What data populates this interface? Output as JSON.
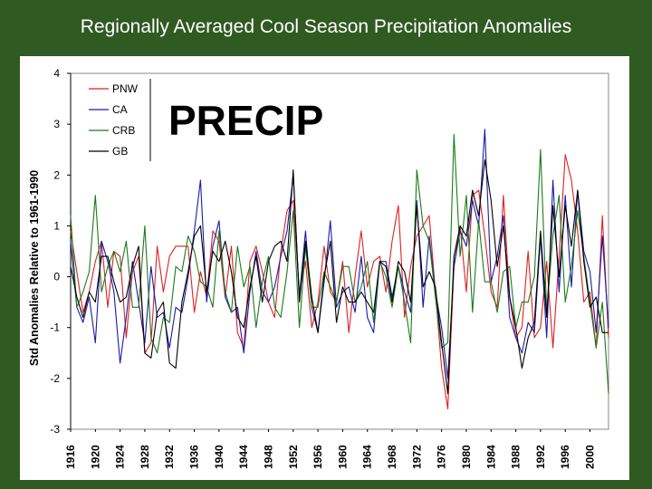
{
  "slide": {
    "title": "Regionally Averaged Cool Season Precipitation Anomalies",
    "overlay_label": "PRECIP"
  },
  "chart_data": {
    "type": "line",
    "title": "",
    "xlabel": "",
    "ylabel": "Std Anomalies Relative to 1961-1990",
    "x": [
      1916,
      1917,
      1918,
      1919,
      1920,
      1921,
      1922,
      1923,
      1924,
      1925,
      1926,
      1927,
      1928,
      1929,
      1930,
      1931,
      1932,
      1933,
      1934,
      1935,
      1936,
      1937,
      1938,
      1939,
      1940,
      1941,
      1942,
      1943,
      1944,
      1945,
      1946,
      1947,
      1948,
      1949,
      1950,
      1951,
      1952,
      1953,
      1954,
      1955,
      1956,
      1957,
      1958,
      1959,
      1960,
      1961,
      1962,
      1963,
      1964,
      1965,
      1966,
      1967,
      1968,
      1969,
      1970,
      1971,
      1972,
      1973,
      1974,
      1975,
      1976,
      1977,
      1978,
      1979,
      1980,
      1981,
      1982,
      1983,
      1984,
      1985,
      1986,
      1987,
      1988,
      1989,
      1990,
      1991,
      1992,
      1993,
      1994,
      1995,
      1996,
      1997,
      1998,
      1999,
      2000,
      2001,
      2002,
      2003
    ],
    "xticks": [
      1916,
      1920,
      1924,
      1928,
      1932,
      1936,
      1940,
      1944,
      1948,
      1952,
      1956,
      1960,
      1964,
      1968,
      1972,
      1976,
      1980,
      1984,
      1988,
      1992,
      1996,
      2000
    ],
    "yticks": [
      4,
      3,
      2,
      1,
      0,
      -1,
      -2,
      -3
    ],
    "ylim": [
      -3,
      4
    ],
    "xlim": [
      1916,
      2003
    ],
    "grid": false,
    "legend_position": "top-left",
    "series": [
      {
        "name": "PNW",
        "color": "#e02020",
        "values": [
          0.9,
          0.1,
          -0.7,
          -0.3,
          0.3,
          0.7,
          -0.6,
          0.5,
          0.4,
          -1.2,
          0.1,
          0.4,
          -1.5,
          -1.3,
          0.6,
          -0.3,
          0.4,
          0.6,
          0.6,
          0.6,
          -0.7,
          0.1,
          -0.4,
          0.9,
          0.7,
          -0.4,
          0.6,
          -1.1,
          -1.4,
          0.3,
          0.6,
          0.1,
          -0.5,
          -0.8,
          0.5,
          1.3,
          1.5,
          -0.3,
          0.3,
          -1.0,
          -0.5,
          0.6,
          -0.3,
          -0.5,
          0.3,
          -1.1,
          0.0,
          0.9,
          -0.2,
          0.3,
          0.4,
          -0.3,
          0.7,
          1.4,
          -0.8,
          0.2,
          0.8,
          1.0,
          1.2,
          -0.3,
          -1.8,
          -2.6,
          0.2,
          1.0,
          -0.3,
          1.6,
          1.7,
          0.8,
          -0.3,
          -0.6,
          1.6,
          -0.4,
          -1.2,
          -1.0,
          0.5,
          -1.2,
          -1.0,
          0.3,
          -1.4,
          0.4,
          2.4,
          1.9,
          0.9,
          -0.5,
          -0.3,
          -1.4,
          1.2,
          -1.2
        ]
      },
      {
        "name": "CA",
        "color": "#1a1aa8",
        "values": [
          0.7,
          -0.6,
          -0.9,
          -0.4,
          -1.3,
          0.7,
          0.3,
          -0.3,
          -1.7,
          -0.8,
          0.3,
          -0.5,
          -1.3,
          0.2,
          -0.8,
          -0.7,
          -1.4,
          -0.6,
          -0.7,
          0.0,
          0.9,
          1.9,
          -0.5,
          0.6,
          1.1,
          -0.4,
          -0.7,
          -0.6,
          -1.5,
          -0.3,
          0.5,
          -0.3,
          -0.5,
          -0.2,
          0.4,
          0.9,
          2.0,
          -0.4,
          0.9,
          -0.6,
          -1.1,
          -0.1,
          1.1,
          -0.6,
          -0.3,
          -0.2,
          -0.7,
          0.4,
          -0.8,
          -1.1,
          0.3,
          0.3,
          -0.4,
          0.2,
          -0.3,
          -0.7,
          1.5,
          -0.6,
          0.8,
          -0.3,
          -1.0,
          -2.0,
          0.2,
          0.9,
          0.6,
          1.5,
          1.0,
          2.9,
          -0.1,
          0.4,
          1.2,
          -0.8,
          -1.2,
          -1.5,
          -0.9,
          -1.1,
          0.8,
          -1.2,
          1.9,
          -0.3,
          1.6,
          -0.2,
          1.7,
          0.5,
          0.1,
          -1.1,
          0.8,
          -1.0
        ]
      },
      {
        "name": "CRB",
        "color": "#1a7a1a",
        "values": [
          1.2,
          -0.6,
          -0.3,
          0.1,
          1.6,
          -0.3,
          0.2,
          0.5,
          0.1,
          0.7,
          -0.6,
          -0.6,
          1.0,
          -1.2,
          -1.5,
          -0.8,
          -0.9,
          0.2,
          0.1,
          0.8,
          0.5,
          -0.1,
          -0.2,
          -0.6,
          0.9,
          -0.3,
          -0.7,
          0.6,
          -0.2,
          0.2,
          -1.0,
          -0.1,
          0.4,
          -0.6,
          -0.8,
          0.1,
          1.3,
          -1.0,
          0.6,
          -0.6,
          -0.6,
          0.1,
          -0.2,
          -0.5,
          0.2,
          0.2,
          -0.5,
          -0.2,
          0.3,
          -0.9,
          0.3,
          0.0,
          -0.6,
          0.2,
          -0.5,
          -1.3,
          2.1,
          1.0,
          0.7,
          -0.4,
          -1.4,
          -1.3,
          2.8,
          0.4,
          1.6,
          -0.7,
          1.1,
          -0.1,
          -0.1,
          -0.7,
          0.1,
          0.2,
          -1.0,
          -0.5,
          -0.5,
          0.0,
          2.5,
          -0.7,
          0.8,
          1.6,
          -0.5,
          0.2,
          1.3,
          0.4,
          -0.5,
          -1.4,
          -0.5,
          -2.3
        ]
      },
      {
        "name": "GB",
        "color": "#000000",
        "values": [
          0.2,
          -0.4,
          -0.8,
          -0.3,
          -0.5,
          0.4,
          0.4,
          -0.1,
          -0.5,
          -0.4,
          0.2,
          0.6,
          -1.5,
          -1.6,
          -0.7,
          -0.5,
          -1.7,
          -1.8,
          -0.5,
          0.1,
          0.8,
          1.0,
          -0.3,
          0.5,
          0.3,
          0.7,
          0.1,
          -0.8,
          -1.0,
          -0.2,
          0.4,
          -0.5,
          0.3,
          0.6,
          0.7,
          0.3,
          2.1,
          -0.5,
          0.7,
          -0.4,
          -1.1,
          0.0,
          0.7,
          -0.9,
          -0.2,
          -0.5,
          -0.5,
          -0.3,
          -0.5,
          -0.7,
          0.3,
          0.2,
          -0.5,
          0.3,
          0.1,
          -0.5,
          1.4,
          -0.2,
          0.1,
          -0.2,
          -1.3,
          -2.3,
          0.4,
          1.0,
          0.8,
          1.7,
          1.2,
          2.3,
          1.5,
          0.2,
          1.0,
          -0.4,
          -1.0,
          -1.8,
          -1.2,
          -0.9,
          0.9,
          -0.8,
          1.4,
          0.0,
          1.4,
          0.6,
          1.7,
          0.3,
          -0.6,
          -0.4,
          -1.1,
          -1.1
        ]
      }
    ]
  }
}
